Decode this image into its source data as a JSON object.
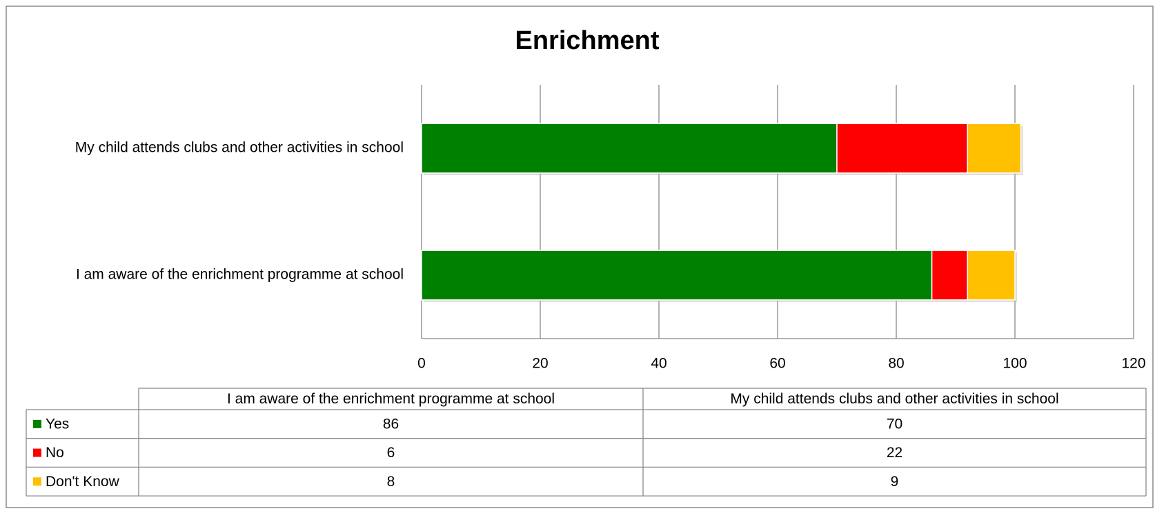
{
  "chart_data": {
    "type": "bar",
    "orientation": "horizontal",
    "stacked": true,
    "title": "Enrichment",
    "categories": [
      "I am aware of the enrichment programme at school",
      "My child attends clubs and other activities in school"
    ],
    "series": [
      {
        "name": "Yes",
        "color": "#008000",
        "values": [
          86,
          70
        ]
      },
      {
        "name": "No",
        "color": "#ff0000",
        "values": [
          6,
          22
        ]
      },
      {
        "name": "Don't Know",
        "color": "#ffc000",
        "values": [
          8,
          9
        ]
      }
    ],
    "xlim": [
      0,
      120
    ],
    "xticks": [
      0,
      20,
      40,
      60,
      80,
      100,
      120
    ],
    "grid": true,
    "data_table": true
  }
}
